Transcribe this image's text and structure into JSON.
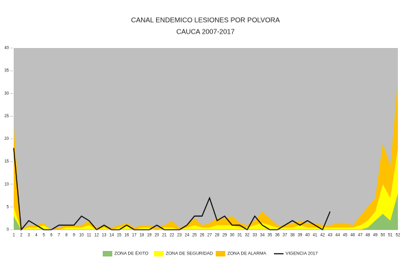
{
  "chart_data": {
    "type": "stacked_area_line",
    "title": "CANAL ENDEMICO LESIONES POR POLVORA",
    "subtitle": "CAUCA 2007-2017",
    "categories": [
      "1",
      "2",
      "3",
      "4",
      "5",
      "6",
      "7",
      "8",
      "9",
      "10",
      "11",
      "12",
      "13",
      "14",
      "15",
      "16",
      "17",
      "18",
      "19",
      "20",
      "21",
      "22",
      "23",
      "24",
      "25",
      "26",
      "27",
      "28",
      "29",
      "30",
      "31",
      "32",
      "33",
      "34",
      "35",
      "36",
      "37",
      "38",
      "39",
      "40",
      "41",
      "42",
      "43",
      "44",
      "45",
      "46",
      "47",
      "48",
      "49",
      "50",
      "51",
      "52"
    ],
    "series": [
      {
        "name": "ZONA DE ÉXITO",
        "color": "#8dc26f",
        "kind": "area",
        "values": [
          3,
          0,
          0,
          0,
          0,
          0,
          0,
          0,
          0,
          0,
          0,
          0,
          0,
          0,
          0,
          0,
          0,
          0,
          0,
          0,
          0,
          0,
          0,
          0,
          0,
          0,
          0,
          0,
          0,
          0,
          0,
          0,
          0,
          0,
          0,
          0,
          0,
          0,
          0,
          0,
          0,
          0,
          0,
          0,
          0,
          0,
          0,
          0.5,
          2,
          3.5,
          2,
          8
        ]
      },
      {
        "name": "ZONA DE SEGURIDAD",
        "color": "#ffff00",
        "kind": "area",
        "values": [
          2,
          0,
          0.5,
          0.5,
          1,
          0,
          0,
          0.5,
          0.5,
          0.5,
          1,
          0,
          0.5,
          0,
          0.5,
          1,
          0,
          0.5,
          0.5,
          0,
          0.5,
          0.5,
          0,
          0.5,
          1,
          0.5,
          0.5,
          1,
          1,
          1,
          0.5,
          0.5,
          1,
          1.5,
          1,
          0.5,
          0.5,
          0.5,
          1,
          0.5,
          0.5,
          0.5,
          0.5,
          0.5,
          0.5,
          0.5,
          1,
          1.5,
          2,
          6.5,
          5,
          10
        ]
      },
      {
        "name": "ZONA DE ALARMA",
        "color": "#ffc000",
        "kind": "area",
        "values": [
          18,
          0,
          0.5,
          0.5,
          0.5,
          0,
          0.5,
          0.5,
          0.5,
          0.5,
          1,
          0.5,
          0.5,
          0.5,
          0.5,
          0.5,
          0.5,
          0.5,
          0.5,
          0.5,
          0.5,
          1.5,
          0.5,
          0.5,
          1.5,
          0.5,
          1,
          1.5,
          1.5,
          2,
          1,
          0.5,
          1,
          2.5,
          1.5,
          0.5,
          0.5,
          1,
          1,
          1,
          1,
          0.5,
          0.5,
          1,
          1,
          0.5,
          2,
          3,
          3,
          9,
          7,
          15
        ]
      },
      {
        "name": "VIGENCIA 2017",
        "color": "#000000",
        "kind": "line",
        "values": [
          18,
          0,
          2,
          1,
          0,
          0,
          1,
          1,
          1,
          3,
          2,
          0,
          1,
          0,
          0,
          1,
          0,
          0,
          0,
          1,
          0,
          0,
          0,
          1,
          3,
          3,
          7,
          2,
          3,
          1,
          1,
          0,
          3,
          1,
          0,
          0,
          1,
          2,
          1,
          2,
          1,
          0,
          4,
          null,
          null,
          null,
          null,
          null,
          null,
          null,
          null,
          null
        ]
      }
    ],
    "background_color": "#bfbfbf",
    "ylim": [
      0,
      40
    ],
    "yticks": [
      0,
      5,
      10,
      15,
      20,
      25,
      30,
      35,
      40
    ]
  }
}
